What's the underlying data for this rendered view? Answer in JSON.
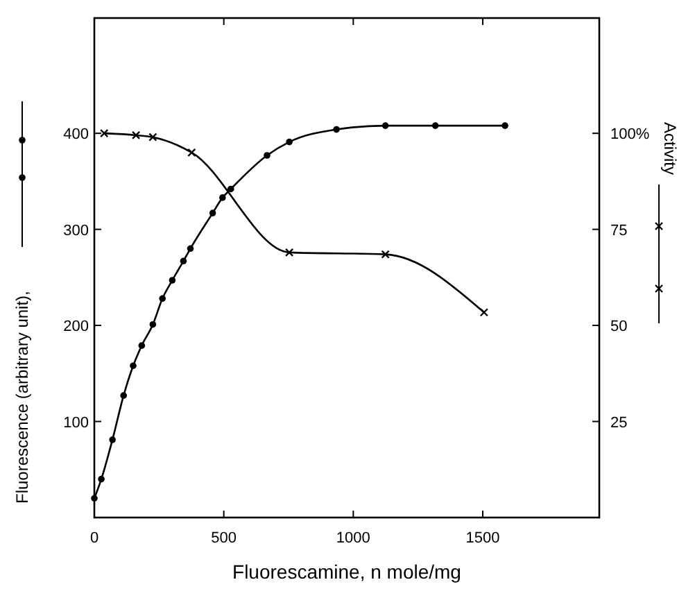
{
  "chart_data": {
    "type": "line",
    "xlabel": "Fluorescamine, n mole/mg",
    "ylabel": "Fluorescence (arbitrary unit),",
    "y2label": "Activity",
    "xlim": [
      0,
      1950
    ],
    "xticks": [
      0,
      500,
      1000,
      1500
    ],
    "ylim": [
      0,
      520
    ],
    "yticks": [
      100,
      200,
      300,
      400
    ],
    "y2lim": [
      0,
      130
    ],
    "y2ticks": [
      25,
      50,
      75,
      {
        "value": 100,
        "label": "100%"
      }
    ],
    "grid": false,
    "line_style": "solid",
    "series": [
      {
        "color": "#000000",
        "marker": "circle",
        "x": [
          0,
          27,
          70,
          113,
          150,
          183,
          226,
          263,
          301,
          344,
          371,
          457,
          495,
          527,
          667,
          753,
          935,
          1124,
          1317,
          1586
        ],
        "values": [
          20,
          40,
          81,
          127,
          158,
          179,
          201,
          228,
          247,
          267,
          280,
          317,
          333,
          342,
          377,
          391,
          404,
          408,
          408,
          408
        ]
      },
      {
        "color": "#000000",
        "marker": "cross",
        "axis": "y2",
        "x": [
          38,
          161,
          226,
          376,
          753,
          1124,
          1505
        ],
        "values": [
          100,
          99.5,
          99,
          95,
          69,
          68.5,
          53.4
        ]
      }
    ]
  }
}
